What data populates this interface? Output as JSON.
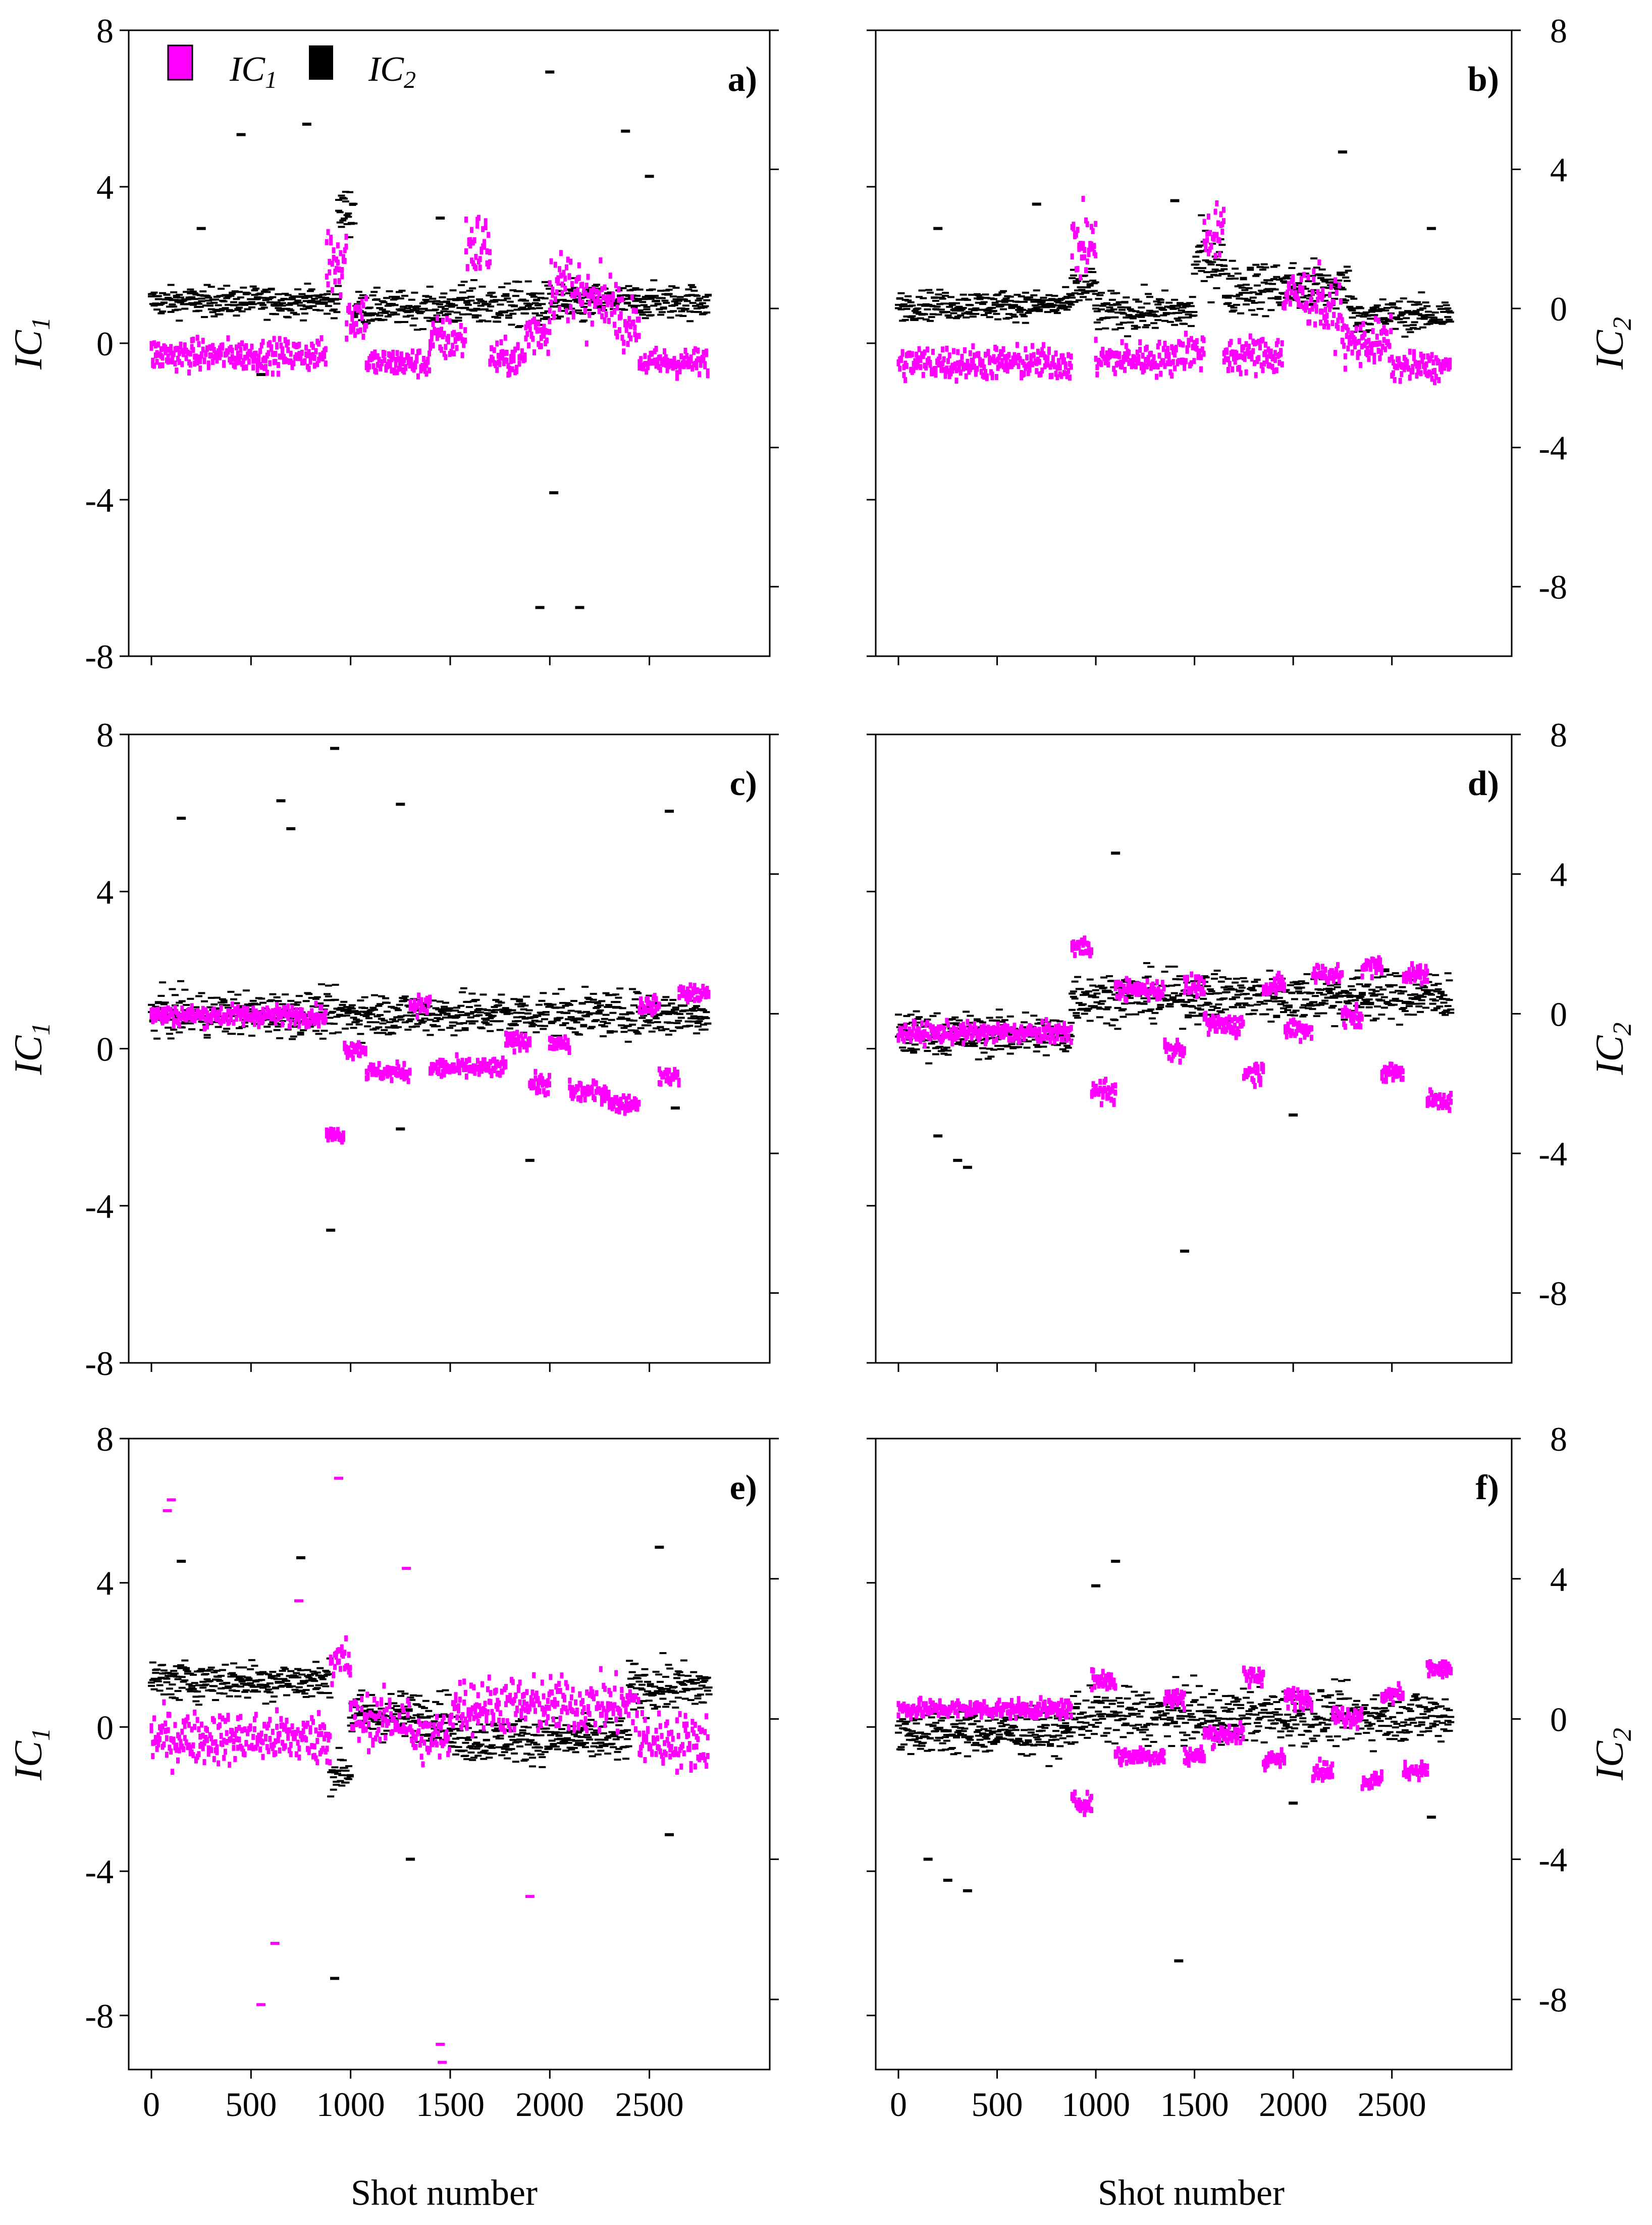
{
  "colors": {
    "ic1": "#ff00ff",
    "ic2": "#000000",
    "axis": "#000000",
    "background": "#ffffff"
  },
  "legend": {
    "items": [
      {
        "label": "IC",
        "sub": "1",
        "color": "#ff00ff"
      },
      {
        "label": "IC",
        "sub": "2",
        "color": "#000000"
      }
    ]
  },
  "x_axis_title": "Shot number",
  "left_axis": {
    "label": "IC",
    "sub": "1"
  },
  "right_axis": {
    "label": "IC",
    "sub": "2"
  },
  "chart_data": [
    {
      "panel": "a)",
      "type": "scatter",
      "marker": "short horizontal dash",
      "left_ticks": [
        "8",
        "4",
        "0",
        "-4",
        "-8"
      ],
      "right_ticks": [],
      "show_x_ticklabels": false,
      "ylim_ic1": [
        -8,
        8
      ],
      "ylim_ic2": [
        -10,
        8
      ],
      "xlim": [
        0,
        2800
      ],
      "series": [
        {
          "name": "IC1",
          "axis": "left",
          "segments": [
            [
              0,
              880,
              -0.3,
              0.55
            ],
            [
              880,
              980,
              2.2,
              1.4
            ],
            [
              980,
              1080,
              0.7,
              0.9
            ],
            [
              1080,
              1400,
              -0.5,
              0.5
            ],
            [
              1400,
              1580,
              0.1,
              0.8
            ],
            [
              1580,
              1700,
              2.5,
              1.2
            ],
            [
              1700,
              1880,
              -0.4,
              0.6
            ],
            [
              1880,
              2000,
              0.3,
              0.9
            ],
            [
              2000,
              2150,
              1.5,
              1.2
            ],
            [
              2150,
              2350,
              1.0,
              1.1
            ],
            [
              2350,
              2450,
              0.5,
              0.8
            ],
            [
              2450,
              2800,
              -0.5,
              0.5
            ]
          ],
          "outliers": []
        },
        {
          "name": "IC2",
          "axis": "right",
          "segments": [
            [
              0,
              940,
              0.2,
              0.6
            ],
            [
              940,
              1020,
              2.8,
              1.0
            ],
            [
              1020,
              1500,
              0.0,
              0.7
            ],
            [
              1500,
              2200,
              0.1,
              0.9
            ],
            [
              2200,
              2800,
              0.2,
              0.7
            ]
          ],
          "outliers": [
            [
              250,
              2.3
            ],
            [
              450,
              5.0
            ],
            [
              550,
              -1.9
            ],
            [
              780,
              5.3
            ],
            [
              1450,
              2.6
            ],
            [
              1950,
              -8.6
            ],
            [
              2000,
              6.8
            ],
            [
              2020,
              -5.3
            ],
            [
              2150,
              -8.6
            ],
            [
              2380,
              5.1
            ],
            [
              2500,
              3.8
            ]
          ]
        }
      ]
    },
    {
      "panel": "b)",
      "type": "scatter",
      "marker": "short horizontal dash",
      "left_ticks": [],
      "right_ticks": [
        "8",
        "4",
        "0",
        "-4",
        "-8"
      ],
      "show_x_ticklabels": false,
      "ylim_ic1": [
        -8,
        8
      ],
      "ylim_ic2": [
        -10,
        8
      ],
      "xlim": [
        0,
        2800
      ],
      "series": [
        {
          "name": "IC1",
          "axis": "left",
          "segments": [
            [
              0,
              880,
              -0.5,
              0.6
            ],
            [
              880,
              1000,
              2.5,
              1.3
            ],
            [
              1000,
              1400,
              -0.4,
              0.6
            ],
            [
              1400,
              1550,
              -0.2,
              0.7
            ],
            [
              1550,
              1650,
              2.8,
              1.0
            ],
            [
              1650,
              1950,
              -0.3,
              0.7
            ],
            [
              1950,
              2150,
              1.2,
              1.0
            ],
            [
              2150,
              2250,
              0.8,
              1.0
            ],
            [
              2250,
              2500,
              0.0,
              0.8
            ],
            [
              2500,
              2800,
              -0.6,
              0.5
            ]
          ],
          "outliers": []
        },
        {
          "name": "IC2",
          "axis": "right",
          "segments": [
            [
              0,
              880,
              0.1,
              0.6
            ],
            [
              880,
              1000,
              0.6,
              0.8
            ],
            [
              1000,
              1500,
              -0.1,
              0.8
            ],
            [
              1500,
              1650,
              1.4,
              1.3
            ],
            [
              1650,
              2300,
              0.6,
              1.1
            ],
            [
              2300,
              2800,
              -0.2,
              0.7
            ]
          ],
          "outliers": [
            [
              200,
              2.3
            ],
            [
              700,
              3.0
            ],
            [
              1400,
              3.1
            ],
            [
              2250,
              4.5
            ],
            [
              2700,
              2.3
            ]
          ]
        }
      ]
    },
    {
      "panel": "c)",
      "type": "scatter",
      "marker": "short horizontal dash",
      "left_ticks": [
        "8",
        "4",
        "0",
        "-4",
        "-8"
      ],
      "right_ticks": [],
      "show_x_ticklabels": false,
      "ylim_ic1": [
        -8,
        8
      ],
      "ylim_ic2": [
        -10,
        8
      ],
      "xlim": [
        0,
        2800
      ],
      "series": [
        {
          "name": "IC1",
          "axis": "left",
          "segments": [
            [
              0,
              880,
              0.85,
              0.35
            ],
            [
              880,
              970,
              -2.2,
              0.25
            ],
            [
              970,
              1080,
              0.0,
              0.3
            ],
            [
              1080,
              1300,
              -0.6,
              0.3
            ],
            [
              1300,
              1400,
              1.1,
              0.35
            ],
            [
              1400,
              1780,
              -0.5,
              0.35
            ],
            [
              1780,
              1900,
              0.2,
              0.3
            ],
            [
              1900,
              2000,
              -0.9,
              0.35
            ],
            [
              2000,
              2100,
              0.1,
              0.3
            ],
            [
              2100,
              2300,
              -1.1,
              0.35
            ],
            [
              2300,
              2450,
              -1.4,
              0.3
            ],
            [
              2450,
              2550,
              1.1,
              0.3
            ],
            [
              2550,
              2650,
              -0.7,
              0.3
            ],
            [
              2650,
              2800,
              1.4,
              0.3
            ]
          ],
          "outliers": []
        },
        {
          "name": "IC2",
          "axis": "right",
          "segments": [
            [
              0,
              2800,
              0.0,
              0.9
            ]
          ],
          "outliers": [
            [
              150,
              5.6
            ],
            [
              650,
              6.1
            ],
            [
              700,
              5.3
            ],
            [
              920,
              7.6
            ],
            [
              900,
              -6.2
            ],
            [
              1250,
              6.0
            ],
            [
              1250,
              -3.3
            ],
            [
              1900,
              -4.2
            ],
            [
              2600,
              5.8
            ],
            [
              2630,
              -2.7
            ]
          ]
        }
      ]
    },
    {
      "panel": "d)",
      "type": "scatter",
      "marker": "short horizontal dash",
      "left_ticks": [],
      "right_ticks": [
        "8",
        "4",
        "0",
        "-4",
        "-8"
      ],
      "show_x_ticklabels": false,
      "ylim_ic1": [
        -8,
        8
      ],
      "ylim_ic2": [
        -10,
        8
      ],
      "xlim": [
        0,
        2800
      ],
      "series": [
        {
          "name": "IC1",
          "axis": "left",
          "segments": [
            [
              0,
              880,
              0.4,
              0.35
            ],
            [
              880,
              980,
              2.6,
              0.35
            ],
            [
              980,
              1100,
              -1.1,
              0.4
            ],
            [
              1100,
              1350,
              1.5,
              0.35
            ],
            [
              1350,
              1450,
              0.0,
              0.4
            ],
            [
              1450,
              1550,
              1.6,
              0.35
            ],
            [
              1550,
              1750,
              0.6,
              0.4
            ],
            [
              1750,
              1850,
              -0.6,
              0.4
            ],
            [
              1850,
              1960,
              1.6,
              0.35
            ],
            [
              1960,
              2100,
              0.5,
              0.4
            ],
            [
              2100,
              2250,
              1.9,
              0.35
            ],
            [
              2250,
              2350,
              0.8,
              0.4
            ],
            [
              2350,
              2450,
              2.1,
              0.35
            ],
            [
              2450,
              2560,
              -0.6,
              0.35
            ],
            [
              2560,
              2680,
              1.9,
              0.3
            ],
            [
              2680,
              2800,
              -1.3,
              0.35
            ]
          ],
          "outliers": []
        },
        {
          "name": "IC2",
          "axis": "right",
          "segments": [
            [
              0,
              880,
              -0.6,
              0.9
            ],
            [
              880,
              2800,
              0.5,
              1.0
            ]
          ],
          "outliers": [
            [
              200,
              -3.5
            ],
            [
              300,
              -4.2
            ],
            [
              350,
              -4.4
            ],
            [
              1100,
              4.6
            ],
            [
              1450,
              -6.8
            ],
            [
              2000,
              -2.9
            ]
          ]
        }
      ]
    },
    {
      "panel": "e)",
      "type": "scatter",
      "marker": "short horizontal dash",
      "left_ticks": [
        "8",
        "4",
        "0",
        "-4",
        "-8"
      ],
      "right_ticks": [],
      "show_x_ticklabels": true,
      "ylim_ic1": [
        -9.5,
        8
      ],
      "ylim_ic2": [
        -10,
        8
      ],
      "xlim": [
        0,
        2800
      ],
      "series": [
        {
          "name": "IC1",
          "axis": "left",
          "segments": [
            [
              0,
              900,
              -0.3,
              1.0
            ],
            [
              900,
              1000,
              1.8,
              1.0
            ],
            [
              1000,
              1300,
              0.2,
              1.0
            ],
            [
              1300,
              1500,
              -0.3,
              1.0
            ],
            [
              1500,
              2450,
              0.6,
              1.1
            ],
            [
              2450,
              2800,
              -0.4,
              1.1
            ]
          ],
          "outliers": [
            [
              80,
              6.0
            ],
            [
              100,
              6.3
            ],
            [
              550,
              -7.7
            ],
            [
              620,
              -6.0
            ],
            [
              740,
              3.5
            ],
            [
              940,
              6.9
            ],
            [
              1280,
              4.4
            ],
            [
              1450,
              -8.8
            ],
            [
              1460,
              -9.3
            ],
            [
              1900,
              -4.7
            ]
          ]
        },
        {
          "name": "IC2",
          "axis": "right",
          "segments": [
            [
              0,
              900,
              1.1,
              0.8
            ],
            [
              900,
              1000,
              -1.5,
              0.8
            ],
            [
              1000,
              1500,
              0.1,
              1.0
            ],
            [
              1500,
              2400,
              -0.6,
              0.9
            ],
            [
              2400,
              2800,
              0.9,
              1.0
            ]
          ],
          "outliers": [
            [
              150,
              4.5
            ],
            [
              750,
              4.6
            ],
            [
              920,
              -7.4
            ],
            [
              1300,
              -4.0
            ],
            [
              2550,
              4.9
            ],
            [
              2600,
              -3.3
            ]
          ]
        }
      ]
    },
    {
      "panel": "f)",
      "type": "scatter",
      "marker": "short horizontal dash",
      "left_ticks": [],
      "right_ticks": [
        "8",
        "4",
        "0",
        "-4",
        "-8"
      ],
      "show_x_ticklabels": true,
      "ylim_ic1": [
        -9.5,
        8
      ],
      "ylim_ic2": [
        -10,
        8
      ],
      "xlim": [
        0,
        2800
      ],
      "series": [
        {
          "name": "IC1",
          "axis": "left",
          "segments": [
            [
              0,
              880,
              0.5,
              0.35
            ],
            [
              880,
              980,
              -2.1,
              0.35
            ],
            [
              980,
              1100,
              1.3,
              0.4
            ],
            [
              1100,
              1350,
              -0.8,
              0.35
            ],
            [
              1350,
              1450,
              0.8,
              0.4
            ],
            [
              1450,
              1550,
              -0.8,
              0.35
            ],
            [
              1550,
              1750,
              -0.2,
              0.4
            ],
            [
              1750,
              1850,
              1.4,
              0.4
            ],
            [
              1850,
              1960,
              -0.9,
              0.35
            ],
            [
              1960,
              2100,
              0.8,
              0.4
            ],
            [
              2100,
              2200,
              -1.2,
              0.35
            ],
            [
              2200,
              2350,
              0.3,
              0.4
            ],
            [
              2350,
              2450,
              -1.5,
              0.35
            ],
            [
              2450,
              2560,
              0.9,
              0.35
            ],
            [
              2560,
              2680,
              -1.2,
              0.3
            ],
            [
              2680,
              2800,
              1.6,
              0.35
            ]
          ],
          "outliers": []
        },
        {
          "name": "IC2",
          "axis": "right",
          "segments": [
            [
              0,
              880,
              -0.4,
              0.9
            ],
            [
              880,
              2800,
              0.1,
              1.1
            ]
          ],
          "outliers": [
            [
              150,
              -4.0
            ],
            [
              250,
              -4.6
            ],
            [
              350,
              -4.9
            ],
            [
              1000,
              3.8
            ],
            [
              1100,
              4.5
            ],
            [
              1420,
              -6.9
            ],
            [
              2000,
              -2.4
            ],
            [
              2700,
              -2.8
            ]
          ]
        }
      ]
    }
  ]
}
